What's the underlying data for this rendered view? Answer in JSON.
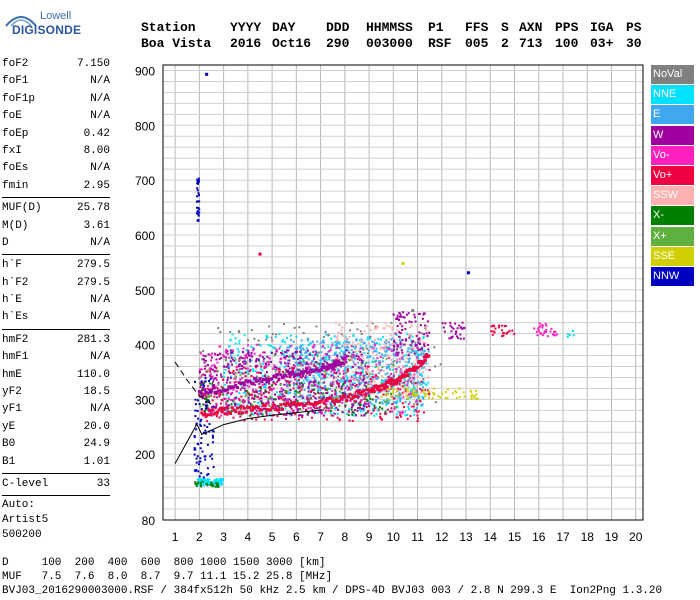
{
  "logo": {
    "line1": "Lowell",
    "line2": "DIGISONDE"
  },
  "header": {
    "row1": [
      "Station",
      "YYYY",
      "DAY",
      "DDD",
      "HHMMSS",
      "P1",
      "FFS",
      "S",
      "AXN",
      "PPS",
      "IGA",
      "PS"
    ],
    "row2": [
      "Boa Vista",
      "2016",
      "Oct16",
      "290",
      "003000",
      "RSF",
      "005",
      "2",
      "713",
      "100",
      "03+",
      "30"
    ]
  },
  "params": {
    "group1": [
      {
        "label": "foF2",
        "value": "7.150"
      },
      {
        "label": "foF1",
        "value": "N/A"
      },
      {
        "label": "foF1p",
        "value": "N/A"
      },
      {
        "label": "foE",
        "value": "N/A"
      },
      {
        "label": "foEp",
        "value": "0.42"
      },
      {
        "label": "fxI",
        "value": "8.00"
      },
      {
        "label": "foEs",
        "value": "N/A"
      },
      {
        "label": "fmin",
        "value": "2.95"
      }
    ],
    "group2": [
      {
        "label": "MUF(D)",
        "value": "25.78"
      },
      {
        "label": "M(D)",
        "value": "3.61"
      },
      {
        "label": "D",
        "value": "N/A"
      }
    ],
    "group3": [
      {
        "label": "h`F",
        "value": "279.5"
      },
      {
        "label": "h`F2",
        "value": "279.5"
      },
      {
        "label": "h`E",
        "value": "N/A"
      },
      {
        "label": "h`Es",
        "value": "N/A"
      }
    ],
    "group4": [
      {
        "label": "hmF2",
        "value": "281.3"
      },
      {
        "label": "hmF1",
        "value": "N/A"
      },
      {
        "label": "hmE",
        "value": "110.0"
      },
      {
        "label": "yF2",
        "value": "18.5"
      },
      {
        "label": "yF1",
        "value": "N/A"
      },
      {
        "label": "yE",
        "value": "20.0"
      },
      {
        "label": "B0",
        "value": "24.9"
      },
      {
        "label": "B1",
        "value": "1.01"
      }
    ],
    "group5": [
      {
        "label": "C-level",
        "value": "33"
      }
    ],
    "autoscale": [
      "Auto:",
      "Artist5",
      "500200"
    ]
  },
  "legend": [
    {
      "name": "NoVal",
      "color": "#808080",
      "text": "#ffffff"
    },
    {
      "name": "NNE",
      "color": "#00e0ff",
      "text": "#ffffff"
    },
    {
      "name": "E",
      "color": "#40a8f0",
      "text": "#ffffff"
    },
    {
      "name": "W",
      "color": "#a000a0",
      "text": "#ffffff"
    },
    {
      "name": "Vo-",
      "color": "#ff20c0",
      "text": "#ffffff"
    },
    {
      "name": "Vo+",
      "color": "#f00040",
      "text": "#ffffff"
    },
    {
      "name": "SSW",
      "color": "#ffb0b0",
      "text": "#ffffff"
    },
    {
      "name": "X-",
      "color": "#008000",
      "text": "#ffffff"
    },
    {
      "name": "X+",
      "color": "#60b040",
      "text": "#ffffff"
    },
    {
      "name": "SSE",
      "color": "#d0d000",
      "text": "#ffffff"
    },
    {
      "name": "NNW",
      "color": "#0000c0",
      "text": "#ffffff"
    }
  ],
  "footer": {
    "d_row": "D     100  200  400  600  800 1000 1500 3000 [km]",
    "muf_row": "MUF   7.5  7.6  8.0  8.7  9.7 11.1 15.2 25.8 [MHz]",
    "file_row": "BVJ03_2016290003000.RSF / 384fx512h 50 kHz 2.5 km / DPS-4D BVJ03 003 / 2.8 N 299.3 E  Ion2Png 1.3.20"
  },
  "chart_data": {
    "type": "scatter",
    "title": "",
    "xlabel": "",
    "ylabel": "",
    "xlim": [
      0.5,
      20.3
    ],
    "ylim": [
      80,
      910
    ],
    "x_ticks": [
      1,
      2,
      3,
      4,
      5,
      6,
      7,
      8,
      9,
      10,
      11,
      12,
      13,
      14,
      15,
      16,
      17,
      18,
      19,
      20
    ],
    "y_ticks": [
      80,
      200,
      300,
      400,
      500,
      600,
      700,
      800,
      900
    ],
    "grid": true,
    "legend_position": "right",
    "clusters": [
      {
        "series": "NoVal",
        "x": [
          1.9,
          12.0
        ],
        "y": [
          290,
          440
        ],
        "n": 140
      },
      {
        "series": "NNE",
        "x": [
          3.0,
          11.5
        ],
        "y": [
          270,
          420
        ],
        "n": 520
      },
      {
        "series": "E",
        "x": [
          5.5,
          11.3
        ],
        "y": [
          290,
          410
        ],
        "n": 520
      },
      {
        "series": "W",
        "x": [
          2.0,
          9.0
        ],
        "y": [
          270,
          390
        ],
        "n": 520
      },
      {
        "series": "Vo-",
        "x": [
          2.0,
          11.0
        ],
        "y": [
          270,
          400
        ],
        "n": 320
      },
      {
        "series": "Vo+",
        "x": [
          2.0,
          11.5
        ],
        "y": [
          260,
          360
        ],
        "n": 280
      },
      {
        "series": "SSW",
        "x": [
          7.5,
          11.5
        ],
        "y": [
          300,
          440
        ],
        "n": 200
      },
      {
        "series": "X-",
        "x": [
          2.0,
          10.0
        ],
        "y": [
          270,
          330
        ],
        "n": 90
      },
      {
        "series": "X+",
        "x": [
          2.0,
          11.0
        ],
        "y": [
          280,
          380
        ],
        "n": 90
      },
      {
        "series": "SSE",
        "x": [
          9.5,
          13.5
        ],
        "y": [
          300,
          320
        ],
        "n": 70
      },
      {
        "series": "NNW",
        "x": [
          1.8,
          2.6
        ],
        "y": [
          150,
          340
        ],
        "n": 90
      },
      {
        "series": "NNE",
        "x": [
          1.8,
          3.0
        ],
        "y": [
          143,
          155
        ],
        "n": 90
      },
      {
        "series": "X-",
        "x": [
          1.8,
          2.8
        ],
        "y": [
          140,
          150
        ],
        "n": 25
      },
      {
        "series": "NNW",
        "x": [
          1.9,
          2.0
        ],
        "y": [
          625,
          705
        ],
        "n": 30
      },
      {
        "series": "W",
        "x": [
          10.0,
          11.5
        ],
        "y": [
          380,
          460
        ],
        "n": 90
      },
      {
        "series": "W",
        "x": [
          12.0,
          13.0
        ],
        "y": [
          410,
          440
        ],
        "n": 30
      },
      {
        "series": "Vo+",
        "x": [
          14.0,
          15.0
        ],
        "y": [
          415,
          435
        ],
        "n": 25
      },
      {
        "series": "Vo-",
        "x": [
          15.8,
          16.8
        ],
        "y": [
          415,
          440
        ],
        "n": 30
      },
      {
        "series": "NNE",
        "x": [
          17.0,
          17.5
        ],
        "y": [
          410,
          425
        ],
        "n": 5
      }
    ],
    "trace_ordinary": {
      "series": "Vo+",
      "x": [
        2.1,
        3.0,
        4.0,
        5.0,
        6.0,
        7.0,
        8.0,
        9.0,
        9.5,
        10.0,
        10.5,
        11.0,
        11.5
      ],
      "y": [
        272,
        279,
        282,
        285,
        289,
        295,
        302,
        315,
        322,
        332,
        345,
        360,
        385
      ]
    },
    "trace_extraordinary": {
      "series": "W",
      "x": [
        2.0,
        3.0,
        4.0,
        5.0,
        6.0,
        7.0,
        7.5,
        8.0
      ],
      "y": [
        310,
        320,
        330,
        340,
        350,
        358,
        362,
        372
      ]
    },
    "profile_curve": {
      "x": [
        1.0,
        1.9,
        2.1,
        3.0,
        4.0,
        5.0,
        6.0,
        7.15
      ],
      "y": [
        183,
        255,
        236,
        254,
        265,
        271,
        276,
        281
      ]
    },
    "profile_dashed": {
      "x": [
        1.0,
        1.5,
        2.0,
        2.5
      ],
      "y": [
        368,
        335,
        306,
        291
      ]
    },
    "isolated_points": [
      {
        "series": "NNW",
        "x": [
          2.3
        ],
        "y": [
          893
        ]
      },
      {
        "series": "NNW",
        "x": [
          13.1
        ],
        "y": [
          531
        ]
      },
      {
        "series": "SSE",
        "x": [
          10.4
        ],
        "y": [
          548
        ]
      },
      {
        "series": "Vo+",
        "x": [
          4.5
        ],
        "y": [
          565
        ]
      },
      {
        "series": "NoVal",
        "x": [
          10.8
        ],
        "y": [
          462
        ]
      }
    ]
  }
}
